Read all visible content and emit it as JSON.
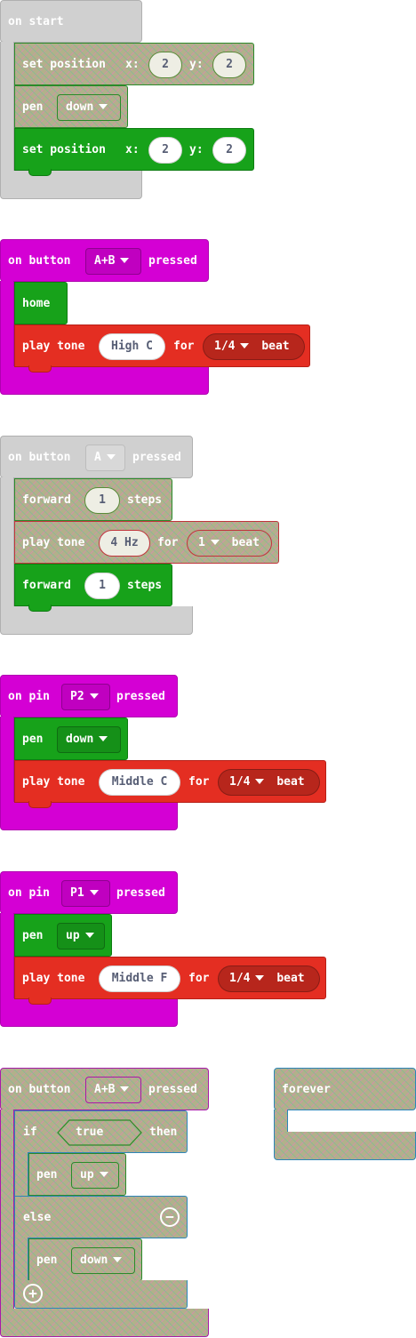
{
  "blocks": {
    "on_start": {
      "title": "on start",
      "set_pos_1": {
        "label": "set position",
        "x_label": "x:",
        "x": "2",
        "y_label": "y:",
        "y": "2"
      },
      "pen": {
        "label": "pen",
        "value": "down"
      },
      "set_pos_2": {
        "label": "set position",
        "x_label": "x:",
        "x": "2",
        "y_label": "y:",
        "y": "2"
      }
    },
    "button_ab_1": {
      "prefix": "on button",
      "button": "A+B",
      "suffix": "pressed",
      "home": "home",
      "tone": {
        "label": "play tone",
        "note": "High C",
        "for": "for",
        "beat": "1/4",
        "beat_label": "beat"
      }
    },
    "button_a": {
      "prefix": "on button",
      "button": "A",
      "suffix": "pressed",
      "forward1": {
        "label": "forward",
        "value": "1",
        "unit": "steps"
      },
      "tone": {
        "label": "play tone",
        "note": "4 Hz",
        "for": "for",
        "beat": "1",
        "beat_label": "beat"
      },
      "forward2": {
        "label": "forward",
        "value": "1",
        "unit": "steps"
      }
    },
    "pin_p2": {
      "prefix": "on pin",
      "pin": "P2",
      "suffix": "pressed",
      "pen": {
        "label": "pen",
        "value": "down"
      },
      "tone": {
        "label": "play tone",
        "note": "Middle C",
        "for": "for",
        "beat": "1/4",
        "beat_label": "beat"
      }
    },
    "pin_p1": {
      "prefix": "on pin",
      "pin": "P1",
      "suffix": "pressed",
      "pen": {
        "label": "pen",
        "value": "up"
      },
      "tone": {
        "label": "play tone",
        "note": "Middle F",
        "for": "for",
        "beat": "1/4",
        "beat_label": "beat"
      }
    },
    "button_ab_2": {
      "prefix": "on button",
      "button": "A+B",
      "suffix": "pressed",
      "if_label": "if",
      "cond": "true",
      "then_label": "then",
      "pen_up": {
        "label": "pen",
        "value": "up"
      },
      "else_label": "else",
      "pen_down": {
        "label": "pen",
        "value": "down"
      },
      "remove_icon": "minus-circle",
      "add_icon": "plus-circle"
    },
    "forever": {
      "title": "forever"
    }
  },
  "colors": {
    "event_gray": "#d0d0d0",
    "event_magenta": "#d400d4",
    "turtle_green": "#17a21a",
    "music_red": "#e42e22",
    "disabled_texture": "#b2b08a"
  }
}
